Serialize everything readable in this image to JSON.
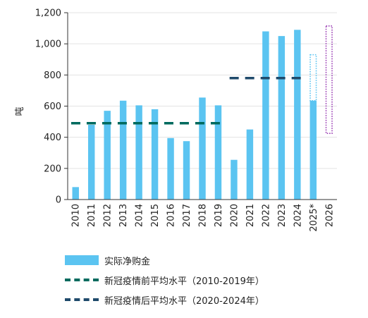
{
  "chart_data": {
    "type": "bar",
    "title": "",
    "xlabel": "",
    "ylabel": "吨",
    "ylim": [
      0,
      1200
    ],
    "yticks": [
      0,
      200,
      400,
      600,
      800,
      1000,
      1200
    ],
    "ytick_labels": [
      "0",
      "200",
      "400",
      "600",
      "800",
      "1,000",
      "1,200"
    ],
    "categories": [
      "2010",
      "2011",
      "2012",
      "2013",
      "2014",
      "2015",
      "2016",
      "2017",
      "2018",
      "2019",
      "2020",
      "2021",
      "2022",
      "2023",
      "2024",
      "2025*",
      "2026"
    ],
    "series": [
      {
        "name": "实际净购金",
        "color": "#5bc4f1",
        "values": [
          80,
          480,
          570,
          635,
          605,
          580,
          395,
          375,
          655,
          605,
          255,
          450,
          1080,
          1050,
          1090,
          635,
          null
        ]
      }
    ],
    "forecast_ranges": [
      {
        "category": "2025*",
        "low": 635,
        "high": 930,
        "color": "#5bc4f1",
        "style": "dotted"
      },
      {
        "category": "2026",
        "low": 425,
        "high": 1115,
        "color": "#9b3fb5",
        "style": "dotted"
      }
    ],
    "reference_lines": [
      {
        "name": "新冠疫情前平均水平（2010-2019年）",
        "value": 490,
        "from": "2010",
        "to": "2019",
        "color": "#006a5e",
        "style": "dashed"
      },
      {
        "name": "新冠疫情后平均水平（2020-2024年）",
        "value": 780,
        "from": "2020",
        "to": "2024",
        "color": "#1f4a6b",
        "style": "dashed"
      }
    ],
    "legend_position": "bottom-left"
  }
}
